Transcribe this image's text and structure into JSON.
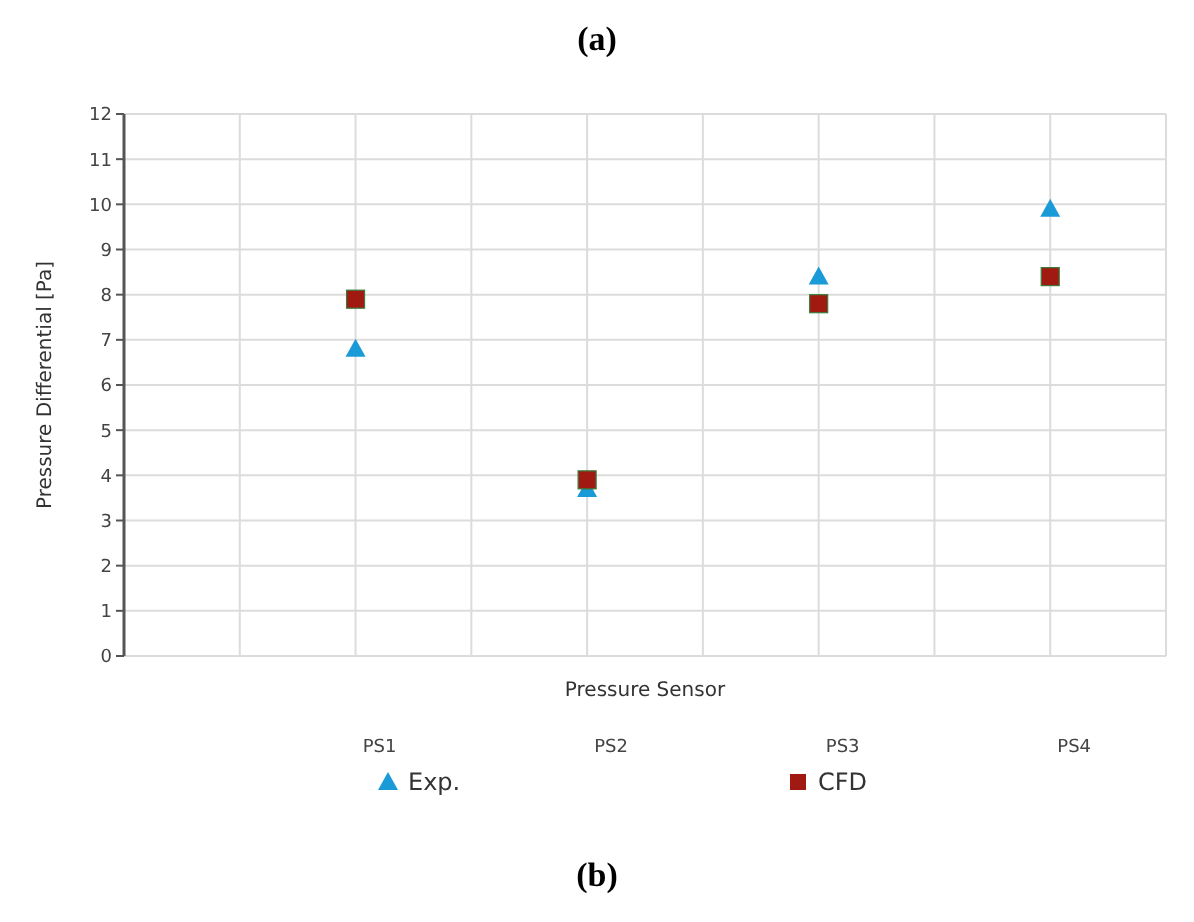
{
  "chart_data": {
    "type": "scatter",
    "title": "(a)",
    "xlabel": "Pressure Sensor",
    "ylabel": "Pressure Differential [Pa]",
    "categories": [
      "PS1",
      "PS2",
      "PS3",
      "PS4"
    ],
    "series": [
      {
        "name": "Exp.",
        "color": "#1b9ad8",
        "marker": "triangle",
        "values": [
          6.8,
          3.7,
          8.4,
          9.9
        ]
      },
      {
        "name": "CFD",
        "color": "#a01a12",
        "marker": "square",
        "values": [
          7.9,
          3.9,
          7.8,
          8.4
        ]
      }
    ],
    "ylim": [
      0,
      12
    ],
    "yticks": [
      0,
      1,
      2,
      3,
      4,
      5,
      6,
      7,
      8,
      9,
      10,
      11,
      12
    ],
    "grid": true,
    "legend": "bottom",
    "annotations": [
      "(b)"
    ]
  }
}
